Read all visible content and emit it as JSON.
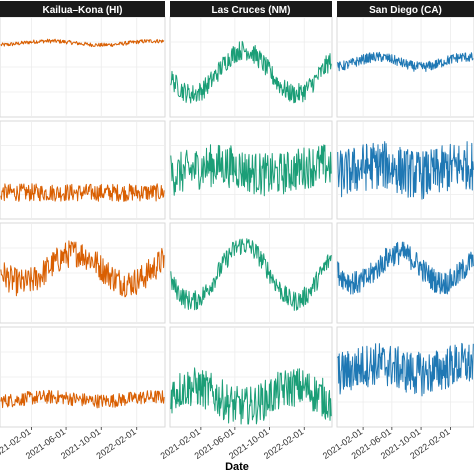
{
  "chart_data": {
    "type": "line",
    "xlabel": "Date",
    "ylabel": "",
    "facets": {
      "columns": [
        {
          "label": "Kailua–Kona (HI)",
          "color": "#D95F02"
        },
        {
          "label": "Las Cruces (NM)",
          "color": "#1B9E77"
        },
        {
          "label": "San Diego (CA)",
          "color": "#1F78B4"
        }
      ],
      "rows": 4,
      "strip_color": "#1a1a1a",
      "strip_text_color": "#ffffff",
      "panel_border_color": "#d9d9d9",
      "grid": true
    },
    "x_range": [
      "2020-10-15",
      "2022-05-10"
    ],
    "x_ticks": [
      "2021-02-01",
      "2021-06-01",
      "2021-10-01",
      "2022-02-01"
    ],
    "y_range": [
      0,
      1
    ],
    "panel_series": [
      [
        {
          "kind": "gentle-seasonal",
          "mean": 0.74,
          "seasonal_amp": 0.02,
          "noise": 0.02
        },
        {
          "kind": "stable-noisy",
          "mean": 0.27,
          "seasonal_amp": 0.0,
          "noise": 0.09
        },
        {
          "kind": "seasonal-peak",
          "mean": 0.55,
          "seasonal_amp": 0.15,
          "noise": 0.14
        },
        {
          "kind": "stable-noisy",
          "mean": 0.28,
          "seasonal_amp": 0.02,
          "noise": 0.07
        }
      ],
      [
        {
          "kind": "seasonal-peak",
          "mean": 0.45,
          "seasonal_amp": 0.22,
          "noise": 0.1
        },
        {
          "kind": "volatile",
          "mean": 0.5,
          "seasonal_amp": 0.05,
          "noise": 0.22
        },
        {
          "kind": "seasonal-peak",
          "mean": 0.5,
          "seasonal_amp": 0.28,
          "noise": 0.1
        },
        {
          "kind": "volatile-trough",
          "mean": 0.3,
          "seasonal_amp": 0.1,
          "noise": 0.2
        }
      ],
      [
        {
          "kind": "gentle-seasonal",
          "mean": 0.55,
          "seasonal_amp": 0.05,
          "noise": 0.05
        },
        {
          "kind": "volatile",
          "mean": 0.5,
          "seasonal_amp": 0.05,
          "noise": 0.25
        },
        {
          "kind": "seasonal-peak",
          "mean": 0.55,
          "seasonal_amp": 0.15,
          "noise": 0.12
        },
        {
          "kind": "volatile",
          "mean": 0.58,
          "seasonal_amp": 0.05,
          "noise": 0.22
        }
      ]
    ]
  }
}
